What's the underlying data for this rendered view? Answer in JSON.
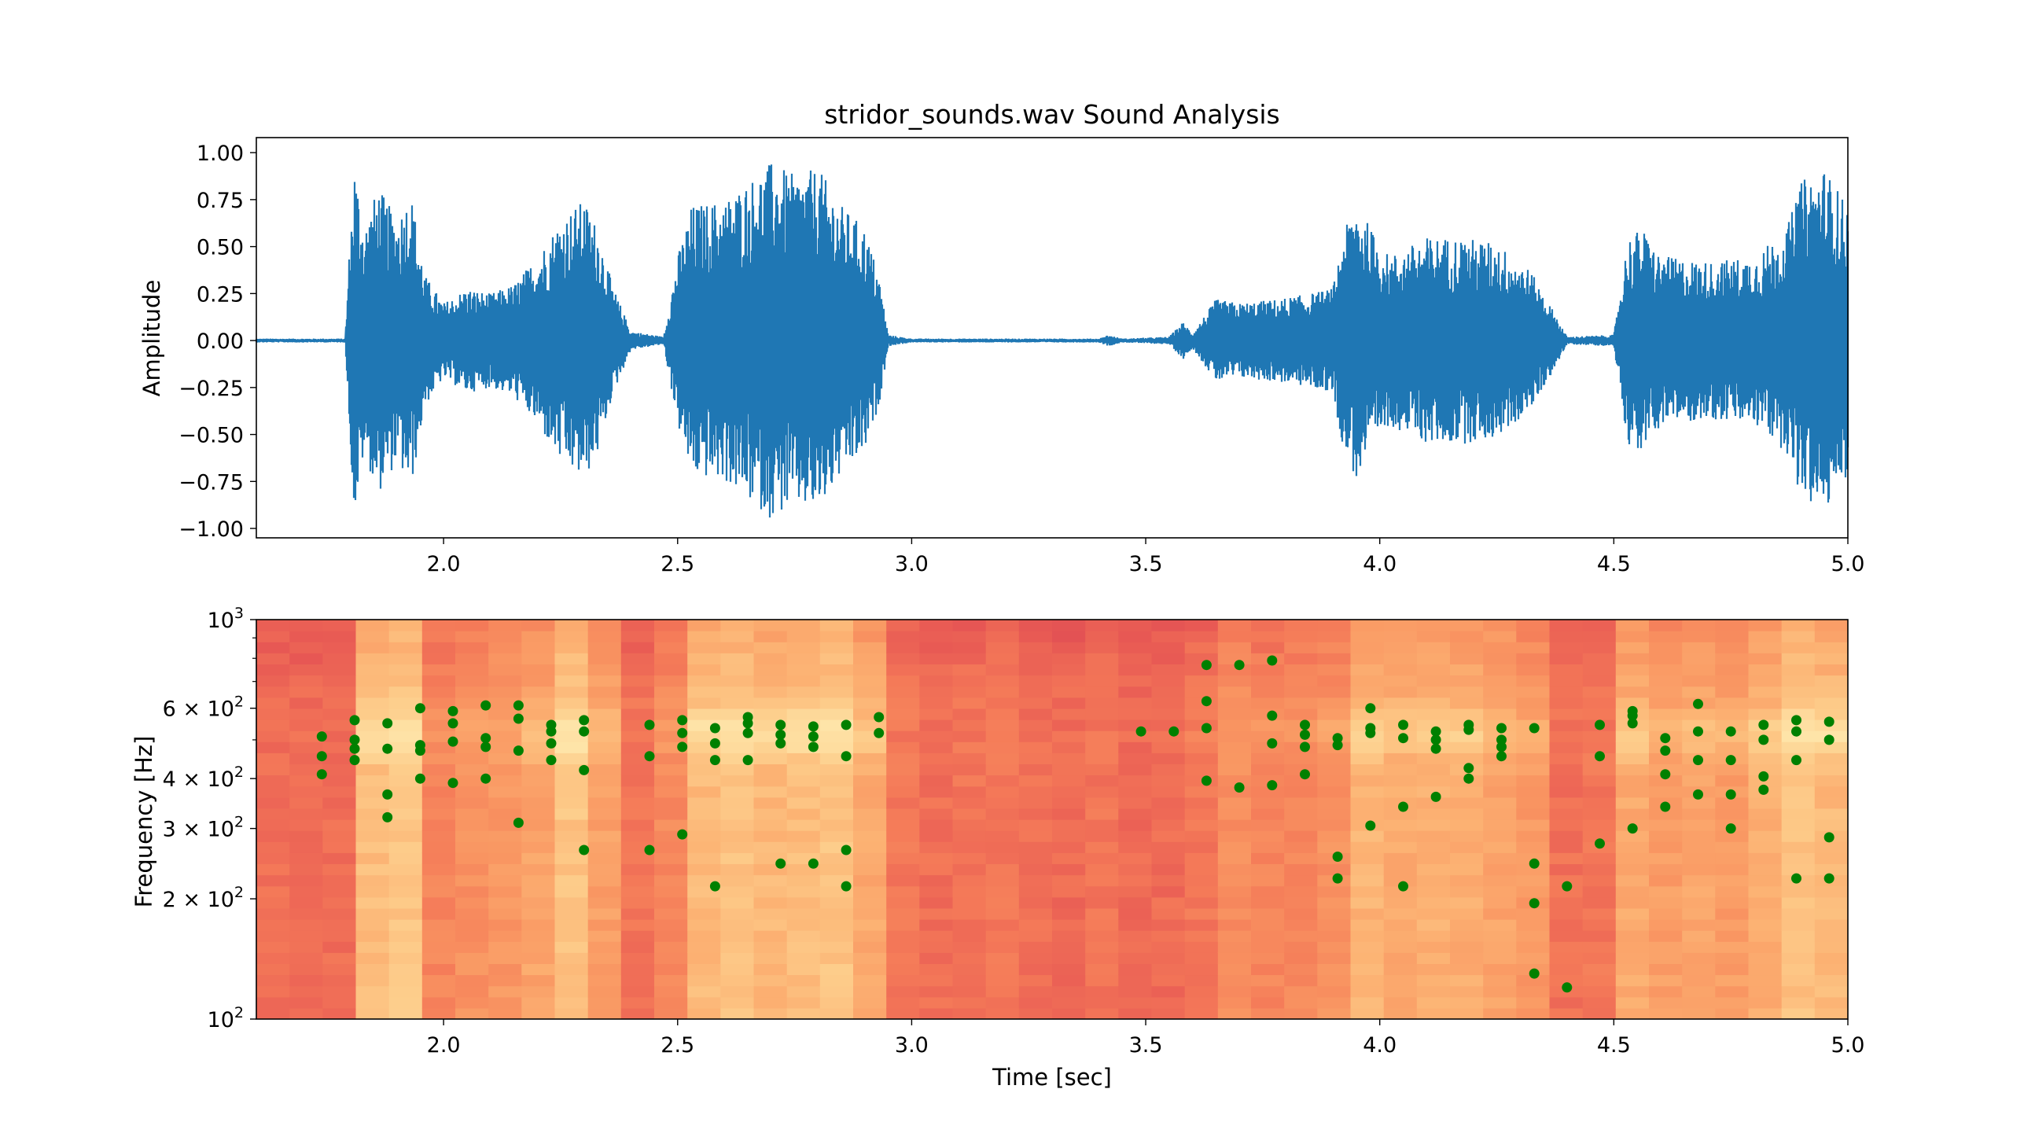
{
  "chart_data": [
    {
      "type": "line",
      "title": "stridor_sounds.wav Sound Analysis",
      "xlabel": "",
      "ylabel": "Amplitude",
      "xlim": [
        1.6,
        5.0
      ],
      "ylim": [
        -1.05,
        1.08
      ],
      "xticks": [
        "2.0",
        "2.5",
        "3.0",
        "3.5",
        "4.0",
        "4.5",
        "5.0"
      ],
      "xtick_values": [
        2.0,
        2.5,
        3.0,
        3.5,
        4.0,
        4.5,
        5.0
      ],
      "yticks": [
        "1.00",
        "0.75",
        "0.50",
        "0.25",
        "0.00",
        "−0.25",
        "−0.50",
        "−0.75",
        "−1.00"
      ],
      "ytick_values": [
        1.0,
        0.75,
        0.5,
        0.25,
        0.0,
        -0.25,
        -0.5,
        -0.75,
        -1.0
      ],
      "grid": false,
      "series_color": "#1f77b4",
      "envelope": [
        [
          1.6,
          0.01
        ],
        [
          1.79,
          0.01
        ],
        [
          1.8,
          0.55
        ],
        [
          1.81,
          0.95
        ],
        [
          1.83,
          0.6
        ],
        [
          1.86,
          0.82
        ],
        [
          1.9,
          0.65
        ],
        [
          1.93,
          0.8
        ],
        [
          1.96,
          0.35
        ],
        [
          2.0,
          0.2
        ],
        [
          2.05,
          0.28
        ],
        [
          2.1,
          0.25
        ],
        [
          2.15,
          0.3
        ],
        [
          2.2,
          0.45
        ],
        [
          2.25,
          0.65
        ],
        [
          2.3,
          0.75
        ],
        [
          2.33,
          0.6
        ],
        [
          2.36,
          0.3
        ],
        [
          2.4,
          0.05
        ],
        [
          2.47,
          0.02
        ],
        [
          2.5,
          0.45
        ],
        [
          2.53,
          0.72
        ],
        [
          2.6,
          0.75
        ],
        [
          2.65,
          0.85
        ],
        [
          2.7,
          0.95
        ],
        [
          2.75,
          0.88
        ],
        [
          2.8,
          0.92
        ],
        [
          2.85,
          0.72
        ],
        [
          2.9,
          0.6
        ],
        [
          2.93,
          0.35
        ],
        [
          2.95,
          0.03
        ],
        [
          3.0,
          0.01
        ],
        [
          3.4,
          0.01
        ],
        [
          3.42,
          0.03
        ],
        [
          3.45,
          0.01
        ],
        [
          3.55,
          0.02
        ],
        [
          3.58,
          0.1
        ],
        [
          3.6,
          0.04
        ],
        [
          3.65,
          0.22
        ],
        [
          3.7,
          0.2
        ],
        [
          3.78,
          0.22
        ],
        [
          3.85,
          0.25
        ],
        [
          3.9,
          0.28
        ],
        [
          3.92,
          0.55
        ],
        [
          3.95,
          0.75
        ],
        [
          3.98,
          0.6
        ],
        [
          4.02,
          0.45
        ],
        [
          4.1,
          0.55
        ],
        [
          4.18,
          0.55
        ],
        [
          4.25,
          0.52
        ],
        [
          4.32,
          0.38
        ],
        [
          4.38,
          0.12
        ],
        [
          4.4,
          0.02
        ],
        [
          4.5,
          0.03
        ],
        [
          4.53,
          0.55
        ],
        [
          4.56,
          0.6
        ],
        [
          4.6,
          0.45
        ],
        [
          4.7,
          0.42
        ],
        [
          4.8,
          0.45
        ],
        [
          4.87,
          0.6
        ],
        [
          4.9,
          0.85
        ],
        [
          4.95,
          0.92
        ],
        [
          5.0,
          0.72
        ]
      ]
    },
    {
      "type": "heatmap",
      "xlabel": "Time [sec]",
      "ylabel": "Frequency [Hz]",
      "xlim": [
        1.6,
        5.0
      ],
      "ylim": [
        100,
        1000
      ],
      "yscale": "log",
      "xticks": [
        "2.0",
        "2.5",
        "3.0",
        "3.5",
        "4.0",
        "4.5",
        "5.0"
      ],
      "xtick_values": [
        2.0,
        2.5,
        3.0,
        3.5,
        4.0,
        4.5,
        5.0
      ],
      "ytick_values": [
        100,
        200,
        300,
        400,
        600,
        1000
      ],
      "colormap": "spectral-warm",
      "overlay_color": "#008000",
      "peaks": [
        [
          1.74,
          510
        ],
        [
          1.74,
          455
        ],
        [
          1.74,
          410
        ],
        [
          1.81,
          560
        ],
        [
          1.81,
          500
        ],
        [
          1.81,
          475
        ],
        [
          1.81,
          445
        ],
        [
          1.88,
          550
        ],
        [
          1.88,
          475
        ],
        [
          1.88,
          365
        ],
        [
          1.88,
          320
        ],
        [
          1.95,
          600
        ],
        [
          1.95,
          485
        ],
        [
          1.95,
          470
        ],
        [
          1.95,
          400
        ],
        [
          2.02,
          590
        ],
        [
          2.02,
          550
        ],
        [
          2.02,
          495
        ],
        [
          2.02,
          390
        ],
        [
          2.09,
          610
        ],
        [
          2.09,
          505
        ],
        [
          2.09,
          480
        ],
        [
          2.09,
          400
        ],
        [
          2.16,
          610
        ],
        [
          2.16,
          565
        ],
        [
          2.16,
          470
        ],
        [
          2.16,
          310
        ],
        [
          2.23,
          545
        ],
        [
          2.23,
          525
        ],
        [
          2.23,
          490
        ],
        [
          2.23,
          445
        ],
        [
          2.3,
          560
        ],
        [
          2.3,
          525
        ],
        [
          2.3,
          420
        ],
        [
          2.3,
          265
        ],
        [
          2.44,
          545
        ],
        [
          2.44,
          455
        ],
        [
          2.44,
          265
        ],
        [
          2.51,
          560
        ],
        [
          2.51,
          520
        ],
        [
          2.51,
          480
        ],
        [
          2.51,
          290
        ],
        [
          2.58,
          535
        ],
        [
          2.58,
          490
        ],
        [
          2.58,
          445
        ],
        [
          2.58,
          215
        ],
        [
          2.65,
          570
        ],
        [
          2.65,
          550
        ],
        [
          2.65,
          520
        ],
        [
          2.65,
          445
        ],
        [
          2.72,
          545
        ],
        [
          2.72,
          515
        ],
        [
          2.72,
          490
        ],
        [
          2.72,
          245
        ],
        [
          2.79,
          540
        ],
        [
          2.79,
          510
        ],
        [
          2.79,
          480
        ],
        [
          2.79,
          245
        ],
        [
          2.86,
          545
        ],
        [
          2.86,
          455
        ],
        [
          2.86,
          265
        ],
        [
          2.86,
          215
        ],
        [
          2.93,
          570
        ],
        [
          2.93,
          520
        ],
        [
          3.49,
          525
        ],
        [
          3.56,
          525
        ],
        [
          3.63,
          770
        ],
        [
          3.63,
          625
        ],
        [
          3.63,
          535
        ],
        [
          3.63,
          395
        ],
        [
          3.7,
          770
        ],
        [
          3.7,
          380
        ],
        [
          3.77,
          790
        ],
        [
          3.77,
          575
        ],
        [
          3.77,
          490
        ],
        [
          3.77,
          385
        ],
        [
          3.84,
          545
        ],
        [
          3.84,
          515
        ],
        [
          3.84,
          480
        ],
        [
          3.84,
          410
        ],
        [
          3.91,
          505
        ],
        [
          3.91,
          485
        ],
        [
          3.91,
          255
        ],
        [
          3.91,
          225
        ],
        [
          3.98,
          600
        ],
        [
          3.98,
          535
        ],
        [
          3.98,
          520
        ],
        [
          3.98,
          305
        ],
        [
          4.05,
          545
        ],
        [
          4.05,
          505
        ],
        [
          4.05,
          340
        ],
        [
          4.05,
          215
        ],
        [
          4.12,
          525
        ],
        [
          4.12,
          500
        ],
        [
          4.12,
          475
        ],
        [
          4.12,
          360
        ],
        [
          4.19,
          545
        ],
        [
          4.19,
          530
        ],
        [
          4.19,
          425
        ],
        [
          4.19,
          400
        ],
        [
          4.26,
          535
        ],
        [
          4.26,
          500
        ],
        [
          4.26,
          480
        ],
        [
          4.26,
          455
        ],
        [
          4.33,
          535
        ],
        [
          4.33,
          245
        ],
        [
          4.33,
          195
        ],
        [
          4.33,
          130
        ],
        [
          4.4,
          215
        ],
        [
          4.4,
          120
        ],
        [
          4.47,
          545
        ],
        [
          4.47,
          455
        ],
        [
          4.47,
          275
        ],
        [
          4.54,
          590
        ],
        [
          4.54,
          575
        ],
        [
          4.54,
          550
        ],
        [
          4.54,
          300
        ],
        [
          4.61,
          505
        ],
        [
          4.61,
          470
        ],
        [
          4.61,
          410
        ],
        [
          4.61,
          340
        ],
        [
          4.68,
          615
        ],
        [
          4.68,
          525
        ],
        [
          4.68,
          445
        ],
        [
          4.68,
          365
        ],
        [
          4.75,
          525
        ],
        [
          4.75,
          445
        ],
        [
          4.75,
          365
        ],
        [
          4.75,
          300
        ],
        [
          4.82,
          545
        ],
        [
          4.82,
          500
        ],
        [
          4.82,
          405
        ],
        [
          4.82,
          375
        ],
        [
          4.89,
          560
        ],
        [
          4.89,
          525
        ],
        [
          4.89,
          445
        ],
        [
          4.89,
          225
        ],
        [
          4.96,
          555
        ],
        [
          4.96,
          500
        ],
        [
          4.96,
          285
        ],
        [
          4.96,
          225
        ]
      ]
    }
  ]
}
